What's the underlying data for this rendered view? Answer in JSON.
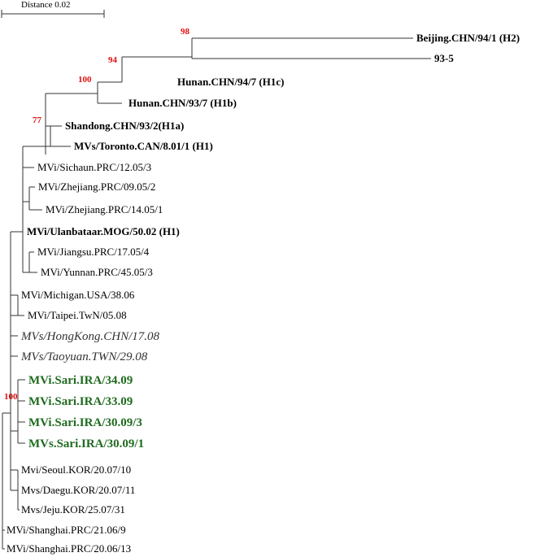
{
  "scale_label": "Distance 0.02",
  "leaves": {
    "beijing": "Beijing.CHN/94/1 (H2)",
    "r935": "93-5",
    "hunan947": "Hunan.CHN/94/7 (H1c)",
    "hunan937": "Hunan.CHN/93/7 (H1b)",
    "shandong": "Shandong.CHN/93/2(H1a)",
    "toronto": "MVs/Toronto.CAN/8.01/1 (H1)",
    "sichaun": "MVi/Sichaun.PRC/12.05/3",
    "zhejiang0905": "MVi/Zhejiang.PRC/09.05/2",
    "zhejiang1405": "MVi/Zhejiang.PRC/14.05/1",
    "ulanbataar": "MVi/Ulanbataar.MOG/50.02 (H1)",
    "jiangsu": "MVi/Jiangsu.PRC/17.05/4",
    "yunnan": "MVi/Yunnan.PRC/45.05/3",
    "michigan": "MVi/Michigan.USA/38.06",
    "taipei": "MVi/Taipei.TwN/05.08",
    "hongkong": "MVs/HongKong.CHN/17.08",
    "taoyuan": "MVs/Taoyuan.TWN/29.08",
    "sari3409": "MVi.Sari.IRA/34.09",
    "sari3309": "MVi.Sari.IRA/33.09",
    "sari30093": "MVi.Sari.IRA/30.09/3",
    "sari30091": "MVs.Sari.IRA/30.09/1",
    "seoul": "Mvi/Seoul.KOR/20.07/10",
    "daegu": "Mvs/Daegu.KOR/20.07/11",
    "jeju": "Mvs/Jeju.KOR/25.07/31",
    "shanghai2106": "MVi/Shanghai.PRC/21.06/9",
    "shanghai2006": "MVi/Shanghai.PRC/20.06/13"
  },
  "bootstrap": {
    "n98": "98",
    "n94": "94",
    "n100a": "100",
    "n77": "77",
    "n100b": "100"
  },
  "colors": {
    "iran_clade": "#1f6b1f",
    "bootstrap": "#e01010"
  }
}
